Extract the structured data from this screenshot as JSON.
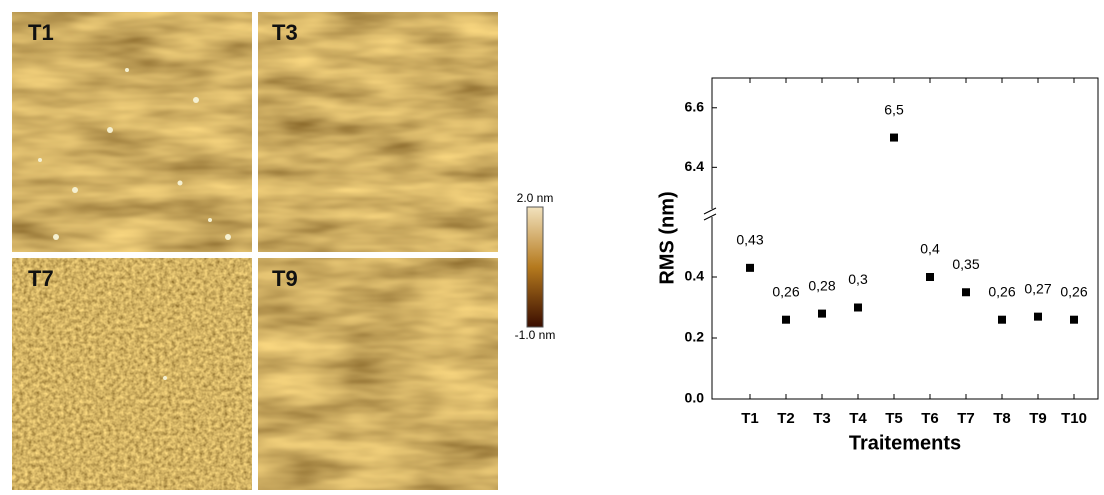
{
  "afm_panels": {
    "labels": [
      "T1",
      "T3",
      "T7",
      "T9"
    ],
    "colorbar": {
      "max_label": "2.0 nm",
      "min_label": "-1.0 nm"
    }
  },
  "chart_data": {
    "type": "scatter",
    "x_label": "Traitements",
    "y_label": "RMS (nm)",
    "categories": [
      "T1",
      "T2",
      "T3",
      "T4",
      "T5",
      "T6",
      "T7",
      "T8",
      "T9",
      "T10"
    ],
    "values": [
      0.43,
      0.26,
      0.28,
      0.3,
      6.5,
      0.4,
      0.35,
      0.26,
      0.27,
      0.26
    ],
    "value_labels": [
      "0,43",
      "0,26",
      "0,28",
      "0,3",
      "6,5",
      "0,4",
      "0,35",
      "0,26",
      "0,27",
      "0,26"
    ],
    "color": "#000000",
    "ylim": [
      [
        0,
        0.6
      ],
      [
        6.25,
        6.7
      ]
    ],
    "yticks": [
      {
        "value": 0,
        "label": "0.0"
      },
      0.2,
      0.4,
      6.4,
      6.6
    ]
  }
}
